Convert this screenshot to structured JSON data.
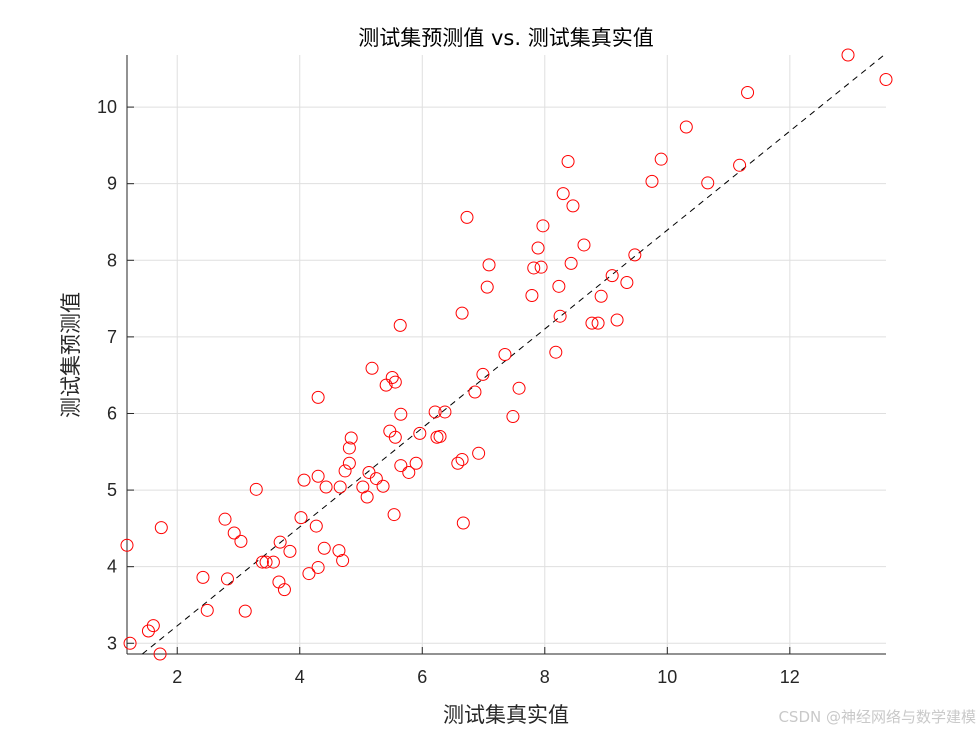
{
  "chart_data": {
    "type": "scatter",
    "title": "测试集预测值 vs. 测试集真实值",
    "xlabel": "测试集真实值",
    "ylabel": "测试集预测值",
    "xlim": [
      1.18,
      13.57
    ],
    "ylim": [
      2.86,
      10.68
    ],
    "xticks": [
      2,
      4,
      6,
      8,
      10,
      12
    ],
    "yticks": [
      3,
      4,
      5,
      6,
      7,
      8,
      9,
      10
    ],
    "grid": true,
    "marker": "open-circle",
    "marker_color": "#ff0000",
    "line_color": "#000000",
    "reference_line": {
      "style": "dashed",
      "x": [
        1.43,
        13.57
      ],
      "y": [
        2.86,
        10.7
      ]
    },
    "points": [
      [
        1.18,
        4.28
      ],
      [
        1.23,
        3.0
      ],
      [
        1.53,
        3.16
      ],
      [
        1.61,
        3.23
      ],
      [
        1.72,
        2.86
      ],
      [
        1.74,
        4.51
      ],
      [
        2.42,
        3.86
      ],
      [
        2.49,
        3.43
      ],
      [
        2.78,
        4.62
      ],
      [
        2.82,
        3.84
      ],
      [
        2.93,
        4.44
      ],
      [
        3.04,
        4.33
      ],
      [
        3.11,
        3.42
      ],
      [
        3.29,
        5.01
      ],
      [
        3.39,
        4.06
      ],
      [
        3.45,
        4.06
      ],
      [
        3.57,
        4.06
      ],
      [
        3.68,
        4.32
      ],
      [
        3.66,
        3.8
      ],
      [
        3.75,
        3.7
      ],
      [
        3.84,
        4.2
      ],
      [
        4.02,
        4.64
      ],
      [
        4.07,
        5.13
      ],
      [
        4.15,
        3.91
      ],
      [
        4.27,
        4.53
      ],
      [
        4.3,
        3.99
      ],
      [
        4.3,
        6.21
      ],
      [
        4.3,
        5.18
      ],
      [
        4.4,
        4.24
      ],
      [
        4.43,
        5.04
      ],
      [
        4.64,
        4.21
      ],
      [
        4.7,
        4.08
      ],
      [
        4.66,
        5.04
      ],
      [
        4.74,
        5.25
      ],
      [
        4.81,
        5.35
      ],
      [
        4.81,
        5.55
      ],
      [
        4.84,
        5.68
      ],
      [
        5.03,
        5.04
      ],
      [
        5.1,
        4.91
      ],
      [
        5.13,
        5.23
      ],
      [
        5.18,
        6.59
      ],
      [
        5.25,
        5.15
      ],
      [
        5.36,
        5.05
      ],
      [
        5.41,
        6.37
      ],
      [
        5.47,
        5.77
      ],
      [
        5.51,
        6.47
      ],
      [
        5.54,
        4.68
      ],
      [
        5.56,
        5.69
      ],
      [
        5.56,
        6.41
      ],
      [
        5.64,
        7.15
      ],
      [
        5.65,
        5.99
      ],
      [
        5.65,
        5.32
      ],
      [
        5.78,
        5.23
      ],
      [
        5.9,
        5.35
      ],
      [
        5.96,
        5.74
      ],
      [
        6.21,
        6.02
      ],
      [
        6.24,
        5.69
      ],
      [
        6.29,
        5.7
      ],
      [
        6.37,
        6.02
      ],
      [
        6.58,
        5.35
      ],
      [
        6.65,
        5.4
      ],
      [
        6.65,
        7.31
      ],
      [
        6.67,
        4.57
      ],
      [
        6.73,
        8.56
      ],
      [
        6.86,
        6.28
      ],
      [
        6.92,
        5.48
      ],
      [
        6.99,
        6.51
      ],
      [
        7.06,
        7.65
      ],
      [
        7.09,
        7.94
      ],
      [
        7.35,
        6.77
      ],
      [
        7.48,
        5.96
      ],
      [
        7.58,
        6.33
      ],
      [
        7.79,
        7.54
      ],
      [
        7.82,
        7.9
      ],
      [
        7.89,
        8.16
      ],
      [
        7.94,
        7.91
      ],
      [
        7.97,
        8.45
      ],
      [
        8.18,
        6.8
      ],
      [
        8.23,
        7.66
      ],
      [
        8.25,
        7.27
      ],
      [
        8.3,
        8.87
      ],
      [
        8.38,
        9.29
      ],
      [
        8.43,
        7.96
      ],
      [
        8.46,
        8.71
      ],
      [
        8.64,
        8.2
      ],
      [
        8.77,
        7.18
      ],
      [
        8.87,
        7.18
      ],
      [
        8.92,
        7.53
      ],
      [
        9.1,
        7.8
      ],
      [
        9.18,
        7.22
      ],
      [
        9.34,
        7.71
      ],
      [
        9.47,
        8.07
      ],
      [
        9.75,
        9.03
      ],
      [
        9.9,
        9.32
      ],
      [
        10.31,
        9.74
      ],
      [
        10.66,
        9.01
      ],
      [
        11.18,
        9.24
      ],
      [
        11.31,
        10.19
      ],
      [
        12.95,
        10.68
      ],
      [
        13.57,
        10.36
      ]
    ]
  },
  "watermark": "CSDN @神经网络与数学建模"
}
